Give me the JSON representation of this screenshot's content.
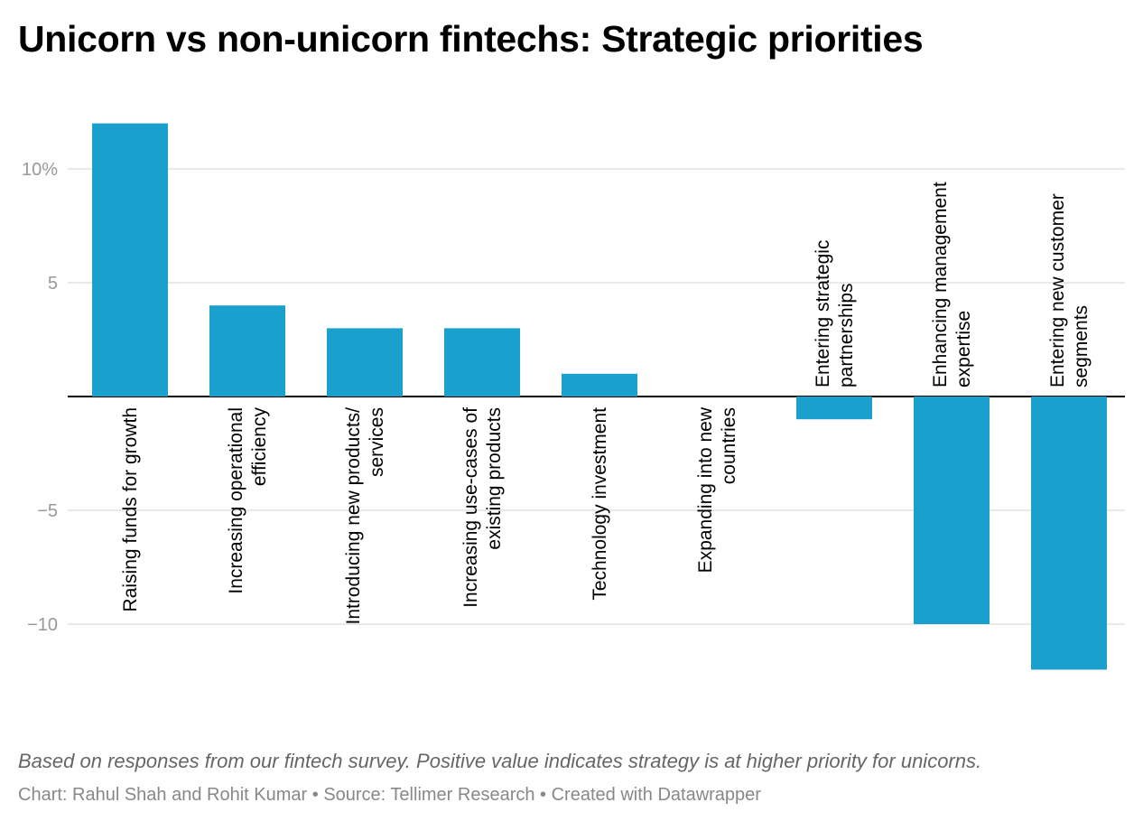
{
  "title": "Unicorn vs non-unicorn fintechs: Strategic priorities",
  "note": "Based on responses from our fintech survey. Positive value indicates strategy is at higher priority for unicorns.",
  "footer": {
    "chart_credit": "Chart: Rahul Shah and Rohit Kumar",
    "source": "Source: Tellimer Research",
    "created_with": "Created with Datawrapper",
    "separator": " • "
  },
  "colors": {
    "bar": "#1aa0cc",
    "grid": "#e2e2e2",
    "baseline": "#000000"
  },
  "chart_data": {
    "type": "bar",
    "categories": [
      [
        "Raising funds for growth"
      ],
      [
        "Increasing operational",
        "efficiency"
      ],
      [
        "Introducing new products/",
        "services"
      ],
      [
        "Increasing use-cases of",
        "existing products"
      ],
      [
        "Technology investment"
      ],
      [
        "Expanding into new",
        "countries"
      ],
      [
        "Entering strategic",
        "partnerships"
      ],
      [
        "Enhancing management",
        "expertise"
      ],
      [
        "Entering new customer",
        "segments"
      ]
    ],
    "values": [
      12,
      4,
      3,
      3,
      1,
      0,
      -1,
      -10,
      -12
    ],
    "ylim": [
      -12,
      12
    ],
    "yticks": [
      10,
      5,
      -5,
      -10
    ],
    "ytick_labels": [
      "10%",
      "5",
      "−5",
      "−10"
    ],
    "grid": true
  }
}
